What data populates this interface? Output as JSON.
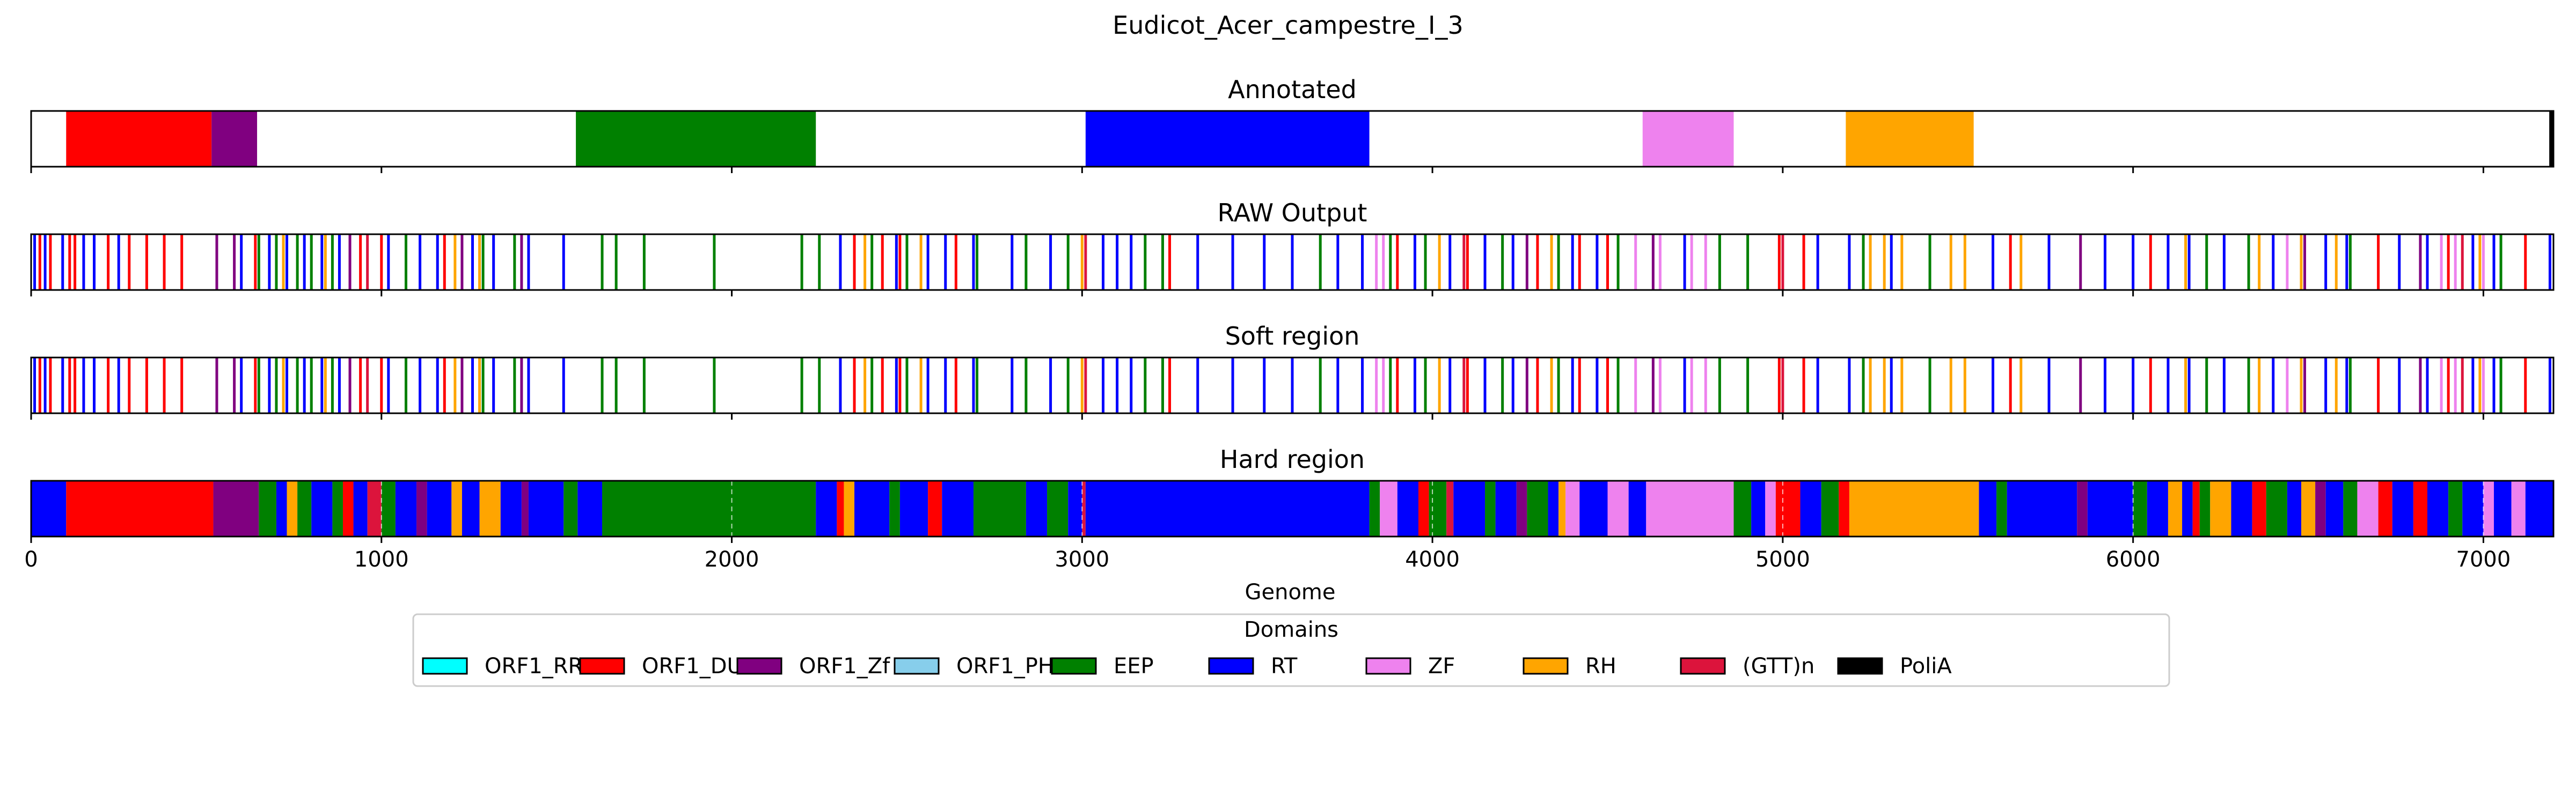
{
  "chart_data": {
    "type": "track",
    "title": "Eudicot_Acer_campestre_I_3",
    "xlabel": "Genome",
    "xlim": [
      0,
      7200
    ],
    "xticks": [
      0,
      1000,
      2000,
      3000,
      4000,
      5000,
      6000,
      7000
    ],
    "xtick_labels": [
      "0",
      "1000",
      "2000",
      "3000",
      "4000",
      "5000",
      "6000",
      "7000"
    ],
    "legend": {
      "title": "Domains",
      "placement": "bottom-center",
      "entries": [
        {
          "name": "ORF1_RRM",
          "color": "#00FFFF"
        },
        {
          "name": "ORF1_DUF",
          "color": "#FF0000"
        },
        {
          "name": "ORF1_Zf",
          "color": "#800080"
        },
        {
          "name": "ORF1_PHA",
          "color": "#87CEEB"
        },
        {
          "name": "EEP",
          "color": "#008000"
        },
        {
          "name": "RT",
          "color": "#0000FF"
        },
        {
          "name": "ZF",
          "color": "#EE82EE"
        },
        {
          "name": "RH",
          "color": "#FFA500"
        },
        {
          "name": "(GTT)n",
          "color": "#DC143C"
        },
        {
          "name": "PoliA",
          "color": "#000000"
        }
      ]
    },
    "panels": [
      {
        "title": "Annotated",
        "kind": "segments",
        "segments": [
          {
            "d": "ORF1_DUF",
            "s": 100,
            "e": 515
          },
          {
            "d": "ORF1_Zf",
            "s": 515,
            "e": 645
          },
          {
            "d": "EEP",
            "s": 1555,
            "e": 2240
          },
          {
            "d": "RT",
            "s": 3010,
            "e": 3820
          },
          {
            "d": "ZF",
            "s": 4600,
            "e": 4860
          },
          {
            "d": "RH",
            "s": 5180,
            "e": 5545
          },
          {
            "d": "PoliA",
            "s": 7188,
            "e": 7200
          }
        ]
      },
      {
        "title": "RAW Output",
        "kind": "lines",
        "lines": {
          "ORF1_DUF": [
            25,
            55,
            110,
            125,
            220,
            280,
            330,
            380,
            430,
            640,
            940,
            1000,
            1180,
            2350,
            2430,
            2480,
            2640,
            3250,
            3900,
            4100,
            4300,
            4420,
            4500,
            4990,
            5060,
            5650,
            6050,
            6700,
            6900,
            7120
          ],
          "ORF1_Zf": [
            530,
            580,
            910,
            1230,
            1400,
            4270,
            4630,
            5850,
            6490,
            6820
          ],
          "EEP": [
            650,
            700,
            760,
            800,
            860,
            1070,
            1290,
            1380,
            1630,
            1670,
            1750,
            1950,
            2200,
            2250,
            2400,
            2500,
            2700,
            2840,
            2960,
            3180,
            3230,
            3680,
            3880,
            3980,
            4200,
            4360,
            4530,
            4820,
            4900,
            5230,
            5420,
            6210,
            6330,
            6620,
            7050
          ],
          "RT": [
            10,
            40,
            90,
            150,
            180,
            250,
            600,
            680,
            730,
            780,
            830,
            880,
            1020,
            1110,
            1160,
            1260,
            1320,
            1420,
            1520,
            2310,
            2470,
            2560,
            2610,
            2690,
            2800,
            2910,
            3060,
            3100,
            3140,
            3330,
            3430,
            3520,
            3600,
            3730,
            3800,
            3950,
            4050,
            4150,
            4230,
            4400,
            4470,
            4720,
            5100,
            5190,
            5310,
            5600,
            5760,
            5920,
            6000,
            6100,
            6160,
            6260,
            6400,
            6550,
            6610,
            6760,
            6840,
            6970,
            7030,
            7190
          ],
          "ZF": [
            3840,
            3860,
            4580,
            4650,
            4740,
            4780,
            6440,
            6880,
            6920,
            7000
          ],
          "RH": [
            720,
            840,
            1210,
            1280,
            2380,
            2540,
            3000,
            4020,
            4340,
            5250,
            5290,
            5340,
            5480,
            5520,
            5680,
            6150,
            6360,
            6480,
            6580,
            6990
          ],
          "(GTT)n": [
            960,
            3010,
            4090,
            5000,
            6940
          ]
        }
      },
      {
        "title": "Soft region",
        "kind": "lines",
        "lines": {
          "ORF1_DUF": [
            25,
            55,
            110,
            125,
            220,
            280,
            330,
            380,
            430,
            640,
            940,
            1000,
            1180,
            2350,
            2430,
            2480,
            2640,
            3250,
            3900,
            4100,
            4300,
            4420,
            4500,
            4990,
            5060,
            5650,
            6050,
            6700,
            6900,
            7120
          ],
          "ORF1_Zf": [
            530,
            580,
            910,
            1230,
            1400,
            4270,
            4630,
            5850,
            6490,
            6820
          ],
          "EEP": [
            650,
            700,
            760,
            800,
            860,
            1070,
            1290,
            1380,
            1630,
            1670,
            1750,
            1950,
            2200,
            2250,
            2400,
            2500,
            2700,
            2840,
            2960,
            3180,
            3230,
            3680,
            3880,
            3980,
            4200,
            4360,
            4530,
            4820,
            4900,
            5230,
            5420,
            6210,
            6330,
            6620,
            7050
          ],
          "RT": [
            10,
            40,
            90,
            150,
            180,
            250,
            600,
            680,
            730,
            780,
            830,
            880,
            1020,
            1110,
            1160,
            1260,
            1320,
            1420,
            1520,
            2310,
            2470,
            2560,
            2610,
            2690,
            2800,
            2910,
            3060,
            3100,
            3140,
            3330,
            3430,
            3520,
            3600,
            3730,
            3800,
            3950,
            4050,
            4150,
            4230,
            4400,
            4470,
            4720,
            5100,
            5190,
            5310,
            5600,
            5760,
            5920,
            6000,
            6100,
            6160,
            6260,
            6400,
            6550,
            6610,
            6760,
            6840,
            6970,
            7030,
            7190
          ],
          "ZF": [
            3840,
            3860,
            4580,
            4650,
            4740,
            4780,
            6440,
            6880,
            6920,
            7000
          ],
          "RH": [
            720,
            840,
            1210,
            1280,
            2380,
            2540,
            3000,
            4020,
            4340,
            5250,
            5290,
            5340,
            5480,
            5520,
            5680,
            6150,
            6360,
            6480,
            6580,
            6990
          ],
          "(GTT)n": [
            960,
            3010,
            4090,
            5000,
            6940
          ]
        }
      },
      {
        "title": "Hard region",
        "kind": "segments",
        "segments": [
          {
            "d": "RT",
            "s": 0,
            "e": 100
          },
          {
            "d": "ORF1_DUF",
            "s": 100,
            "e": 520
          },
          {
            "d": "ORF1_Zf",
            "s": 520,
            "e": 650
          },
          {
            "d": "EEP",
            "s": 650,
            "e": 700
          },
          {
            "d": "RT",
            "s": 700,
            "e": 730
          },
          {
            "d": "RH",
            "s": 730,
            "e": 760
          },
          {
            "d": "EEP",
            "s": 760,
            "e": 800
          },
          {
            "d": "RT",
            "s": 800,
            "e": 860
          },
          {
            "d": "EEP",
            "s": 860,
            "e": 890
          },
          {
            "d": "ORF1_DUF",
            "s": 890,
            "e": 920
          },
          {
            "d": "RT",
            "s": 920,
            "e": 960
          },
          {
            "d": "(GTT)n",
            "s": 960,
            "e": 1000
          },
          {
            "d": "EEP",
            "s": 1000,
            "e": 1040
          },
          {
            "d": "RT",
            "s": 1040,
            "e": 1100
          },
          {
            "d": "ORF1_Zf",
            "s": 1100,
            "e": 1130
          },
          {
            "d": "RT",
            "s": 1130,
            "e": 1200
          },
          {
            "d": "RH",
            "s": 1200,
            "e": 1230
          },
          {
            "d": "RT",
            "s": 1230,
            "e": 1280
          },
          {
            "d": "RH",
            "s": 1280,
            "e": 1340
          },
          {
            "d": "RT",
            "s": 1340,
            "e": 1400
          },
          {
            "d": "ORF1_Zf",
            "s": 1400,
            "e": 1420
          },
          {
            "d": "RT",
            "s": 1420,
            "e": 1520
          },
          {
            "d": "EEP",
            "s": 1520,
            "e": 1560
          },
          {
            "d": "RT",
            "s": 1560,
            "e": 1630
          },
          {
            "d": "EEP",
            "s": 1630,
            "e": 2240
          },
          {
            "d": "RT",
            "s": 2240,
            "e": 2300
          },
          {
            "d": "ORF1_DUF",
            "s": 2300,
            "e": 2320
          },
          {
            "d": "RH",
            "s": 2320,
            "e": 2350
          },
          {
            "d": "RT",
            "s": 2350,
            "e": 2450
          },
          {
            "d": "EEP",
            "s": 2450,
            "e": 2480
          },
          {
            "d": "RT",
            "s": 2480,
            "e": 2560
          },
          {
            "d": "ORF1_DUF",
            "s": 2560,
            "e": 2600
          },
          {
            "d": "RT",
            "s": 2600,
            "e": 2690
          },
          {
            "d": "EEP",
            "s": 2690,
            "e": 2840
          },
          {
            "d": "RT",
            "s": 2840,
            "e": 2900
          },
          {
            "d": "EEP",
            "s": 2900,
            "e": 2960
          },
          {
            "d": "RT",
            "s": 2960,
            "e": 3000
          },
          {
            "d": "(GTT)n",
            "s": 3000,
            "e": 3010
          },
          {
            "d": "RT",
            "s": 3010,
            "e": 3820
          },
          {
            "d": "EEP",
            "s": 3820,
            "e": 3850
          },
          {
            "d": "ZF",
            "s": 3850,
            "e": 3900
          },
          {
            "d": "RT",
            "s": 3900,
            "e": 3960
          },
          {
            "d": "ORF1_DUF",
            "s": 3960,
            "e": 3990
          },
          {
            "d": "EEP",
            "s": 3990,
            "e": 4040
          },
          {
            "d": "(GTT)n",
            "s": 4040,
            "e": 4060
          },
          {
            "d": "RT",
            "s": 4060,
            "e": 4150
          },
          {
            "d": "EEP",
            "s": 4150,
            "e": 4180
          },
          {
            "d": "RT",
            "s": 4180,
            "e": 4240
          },
          {
            "d": "ORF1_Zf",
            "s": 4240,
            "e": 4270
          },
          {
            "d": "EEP",
            "s": 4270,
            "e": 4330
          },
          {
            "d": "RT",
            "s": 4330,
            "e": 4360
          },
          {
            "d": "RH",
            "s": 4360,
            "e": 4380
          },
          {
            "d": "ZF",
            "s": 4380,
            "e": 4420
          },
          {
            "d": "RT",
            "s": 4420,
            "e": 4500
          },
          {
            "d": "ZF",
            "s": 4500,
            "e": 4560
          },
          {
            "d": "RT",
            "s": 4560,
            "e": 4610
          },
          {
            "d": "ZF",
            "s": 4610,
            "e": 4860
          },
          {
            "d": "EEP",
            "s": 4860,
            "e": 4910
          },
          {
            "d": "RT",
            "s": 4910,
            "e": 4950
          },
          {
            "d": "ZF",
            "s": 4950,
            "e": 4980
          },
          {
            "d": "ORF1_DUF",
            "s": 4980,
            "e": 5050
          },
          {
            "d": "RT",
            "s": 5050,
            "e": 5110
          },
          {
            "d": "EEP",
            "s": 5110,
            "e": 5160
          },
          {
            "d": "ORF1_DUF",
            "s": 5160,
            "e": 5190
          },
          {
            "d": "RH",
            "s": 5190,
            "e": 5560
          },
          {
            "d": "RT",
            "s": 5560,
            "e": 5610
          },
          {
            "d": "EEP",
            "s": 5610,
            "e": 5640
          },
          {
            "d": "RT",
            "s": 5640,
            "e": 5840
          },
          {
            "d": "ORF1_Zf",
            "s": 5840,
            "e": 5870
          },
          {
            "d": "RT",
            "s": 5870,
            "e": 6000
          },
          {
            "d": "EEP",
            "s": 6000,
            "e": 6040
          },
          {
            "d": "RT",
            "s": 6040,
            "e": 6100
          },
          {
            "d": "RH",
            "s": 6100,
            "e": 6140
          },
          {
            "d": "RT",
            "s": 6140,
            "e": 6170
          },
          {
            "d": "ORF1_DUF",
            "s": 6170,
            "e": 6190
          },
          {
            "d": "EEP",
            "s": 6190,
            "e": 6220
          },
          {
            "d": "RH",
            "s": 6220,
            "e": 6280
          },
          {
            "d": "RT",
            "s": 6280,
            "e": 6340
          },
          {
            "d": "ORF1_DUF",
            "s": 6340,
            "e": 6380
          },
          {
            "d": "EEP",
            "s": 6380,
            "e": 6440
          },
          {
            "d": "RT",
            "s": 6440,
            "e": 6480
          },
          {
            "d": "RH",
            "s": 6480,
            "e": 6520
          },
          {
            "d": "ORF1_Zf",
            "s": 6520,
            "e": 6550
          },
          {
            "d": "RT",
            "s": 6550,
            "e": 6600
          },
          {
            "d": "EEP",
            "s": 6600,
            "e": 6640
          },
          {
            "d": "ZF",
            "s": 6640,
            "e": 6700
          },
          {
            "d": "ORF1_DUF",
            "s": 6700,
            "e": 6740
          },
          {
            "d": "RT",
            "s": 6740,
            "e": 6800
          },
          {
            "d": "ORF1_DUF",
            "s": 6800,
            "e": 6840
          },
          {
            "d": "RT",
            "s": 6840,
            "e": 6900
          },
          {
            "d": "EEP",
            "s": 6900,
            "e": 6940
          },
          {
            "d": "RT",
            "s": 6940,
            "e": 7000
          },
          {
            "d": "ZF",
            "s": 7000,
            "e": 7030
          },
          {
            "d": "RT",
            "s": 7030,
            "e": 7080
          },
          {
            "d": "ZF",
            "s": 7080,
            "e": 7120
          },
          {
            "d": "RT",
            "s": 7120,
            "e": 7200
          }
        ]
      }
    ]
  }
}
